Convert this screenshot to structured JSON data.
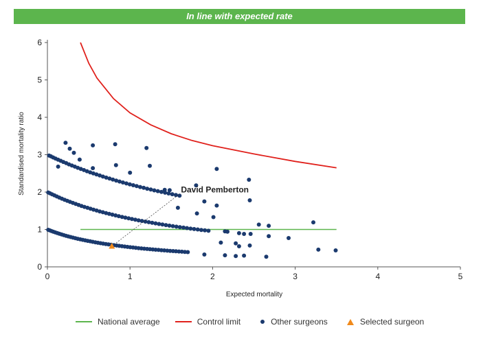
{
  "banner": {
    "text": "In line with expected rate",
    "color": "#5cb54d"
  },
  "chart_data": {
    "type": "scatter",
    "title": "",
    "xlabel": "Expected mortality",
    "ylabel": "Standardised mortality ratio",
    "xlim": [
      0,
      5
    ],
    "ylim": [
      0,
      6
    ],
    "x_ticks": [
      "0",
      "1",
      "2",
      "3",
      "4",
      "5"
    ],
    "y_ticks": [
      "0",
      "1",
      "2",
      "3",
      "4",
      "5",
      "6"
    ],
    "grid": false,
    "legend_position": "bottom",
    "national_average": {
      "name": "National average",
      "color": "#5cb54d",
      "y": 1,
      "x_range": [
        0.4,
        3.5
      ]
    },
    "control_limit": {
      "name": "Control limit",
      "color": "#e0201b",
      "points": [
        [
          0.4,
          6.0
        ],
        [
          0.5,
          5.45
        ],
        [
          0.6,
          5.05
        ],
        [
          0.8,
          4.5
        ],
        [
          1.0,
          4.12
        ],
        [
          1.25,
          3.8
        ],
        [
          1.5,
          3.56
        ],
        [
          1.75,
          3.38
        ],
        [
          2.0,
          3.24
        ],
        [
          2.5,
          3.02
        ],
        [
          3.0,
          2.82
        ],
        [
          3.5,
          2.65
        ]
      ]
    },
    "other_surgeons": {
      "name": "Other surgeons",
      "color": "#1b3a6e",
      "curves": [
        {
          "k": 1,
          "x_range": [
            0.01,
            1.7
          ],
          "count": 55
        },
        {
          "k": 2,
          "x_range": [
            0.01,
            1.95
          ],
          "count": 52
        },
        {
          "k": 3,
          "x_range": [
            0.02,
            1.6
          ],
          "count": 42
        }
      ],
      "points": [
        [
          0.13,
          2.68
        ],
        [
          0.22,
          3.32
        ],
        [
          0.27,
          3.16
        ],
        [
          0.32,
          3.05
        ],
        [
          0.39,
          2.87
        ],
        [
          0.55,
          3.25
        ],
        [
          0.55,
          2.64
        ],
        [
          0.82,
          3.28
        ],
        [
          0.83,
          2.72
        ],
        [
          1.0,
          2.52
        ],
        [
          1.2,
          3.18
        ],
        [
          1.24,
          2.7
        ],
        [
          1.48,
          2.05
        ],
        [
          1.42,
          2.06
        ],
        [
          1.58,
          1.58
        ],
        [
          1.8,
          2.18
        ],
        [
          1.81,
          1.43
        ],
        [
          1.9,
          1.75
        ],
        [
          2.05,
          2.62
        ],
        [
          2.05,
          1.64
        ],
        [
          2.01,
          1.33
        ],
        [
          2.1,
          0.65
        ],
        [
          2.15,
          0.95
        ],
        [
          2.18,
          0.94
        ],
        [
          2.28,
          0.63
        ],
        [
          2.32,
          0.9
        ],
        [
          2.38,
          0.88
        ],
        [
          2.44,
          2.33
        ],
        [
          2.46,
          0.88
        ],
        [
          2.45,
          0.57
        ],
        [
          2.45,
          1.78
        ],
        [
          2.56,
          1.13
        ],
        [
          2.68,
          1.1
        ],
        [
          2.68,
          0.82
        ],
        [
          2.92,
          0.77
        ],
        [
          3.22,
          1.19
        ],
        [
          3.28,
          0.46
        ],
        [
          3.49,
          0.44
        ],
        [
          2.15,
          0.31
        ],
        [
          2.28,
          0.29
        ],
        [
          2.38,
          0.3
        ],
        [
          2.65,
          0.27
        ],
        [
          1.9,
          0.33
        ],
        [
          2.32,
          0.55
        ]
      ]
    },
    "selected_surgeon": {
      "name": "Selected surgeon",
      "label": "David Pemberton",
      "color": "#f08a1c",
      "x": 0.78,
      "y": 0.55
    }
  }
}
